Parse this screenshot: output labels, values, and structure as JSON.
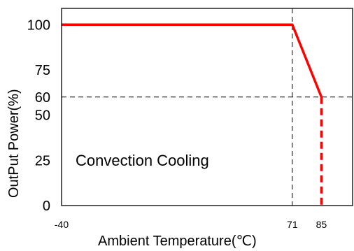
{
  "chart_data": {
    "type": "line",
    "xlabel": "Ambient Temperature(℃)",
    "ylabel": "OutPut Power(%)",
    "annotation": "Convection Cooling",
    "x_ticks": [
      "-40",
      "71",
      "85"
    ],
    "y_ticks": [
      "100",
      "75",
      "60",
      "50",
      "25",
      "0"
    ],
    "xlim": [
      -40,
      100
    ],
    "ylim": [
      0,
      109
    ],
    "grid": false,
    "reference_lines": [
      {
        "axis": "x",
        "value": 71,
        "style": "dashed"
      },
      {
        "axis": "y",
        "value": 60,
        "style": "dashed"
      }
    ],
    "series": [
      {
        "color": "#ff0000",
        "points": [
          {
            "x": -40,
            "y": 100
          },
          {
            "x": 71,
            "y": 100
          },
          {
            "x": 85,
            "y": 60
          }
        ]
      }
    ],
    "drop_line": {
      "x": 85,
      "from_y": 60,
      "to_y": 0,
      "style": "dashed",
      "color": "#ff0000"
    }
  }
}
